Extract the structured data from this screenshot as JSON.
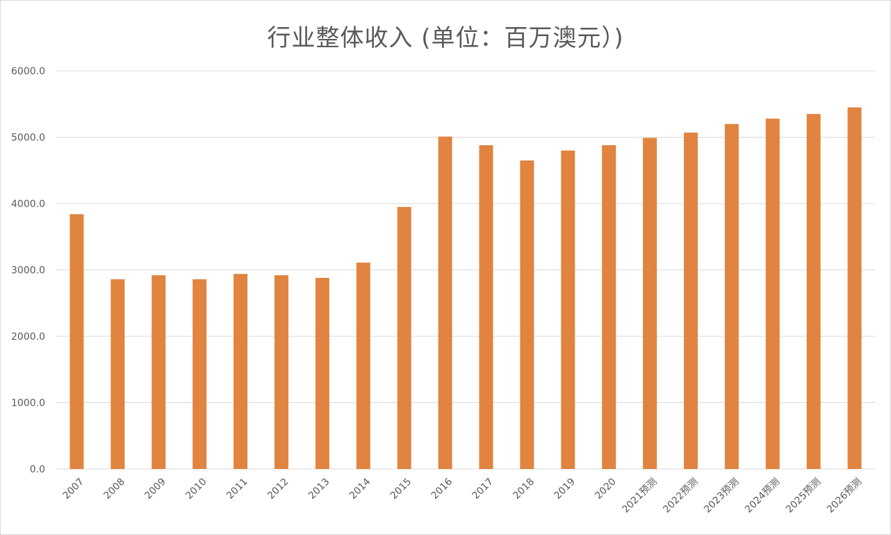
{
  "chart_data": {
    "type": "bar",
    "title": "行业整体收入 (单位：百万澳元）)",
    "xlabel": "",
    "ylabel": "",
    "categories": [
      "2007",
      "2008",
      "2009",
      "2010",
      "2011",
      "2012",
      "2013",
      "2014",
      "2015",
      "2016",
      "2017",
      "2018",
      "2019",
      "2020",
      "2021预测",
      "2022预测",
      "2023预测",
      "2024预测",
      "2025预测",
      "2026预测"
    ],
    "values": [
      3840,
      2860,
      2920,
      2860,
      2940,
      2920,
      2880,
      3110,
      3950,
      5010,
      4880,
      4650,
      4800,
      4880,
      4990,
      5070,
      5200,
      5280,
      5350,
      5450
    ],
    "ylim": [
      0,
      6000
    ],
    "yticks": [
      "0.0",
      "1000.0",
      "2000.0",
      "3000.0",
      "4000.0",
      "5000.0",
      "6000.0"
    ],
    "grid": true,
    "legend": "none",
    "bar_color": "#E0843F",
    "grid_color": "#D9D9D9",
    "text_color": "#595959"
  }
}
